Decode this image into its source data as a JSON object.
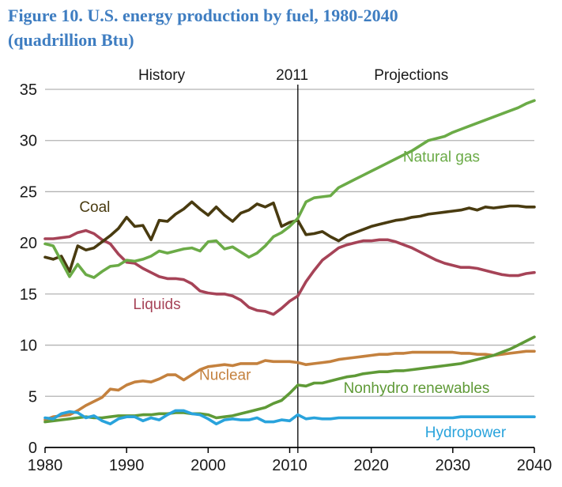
{
  "figure": {
    "title_line1": "Figure 10. U.S. energy production by fuel, 1980-2040",
    "title_line2": "(quadrillion Btu)",
    "title_color": "#3e7dc1"
  },
  "chart_data": {
    "type": "line",
    "title": "U.S. energy production by fuel, 1980-2040",
    "ylabel": "quadrillion Btu",
    "xlabel": "",
    "x_range": [
      1980,
      2040
    ],
    "ylim": [
      0,
      35
    ],
    "y_ticks": [
      0,
      5,
      10,
      15,
      20,
      25,
      30,
      35
    ],
    "x_ticks": [
      1980,
      1990,
      2000,
      2010,
      2020,
      2030,
      2040
    ],
    "grid": "horizontal",
    "grid_color": "#b3b3b3",
    "axis_color": "#000000",
    "text_color": "#1a1a1a",
    "legend_position": "inline-labels",
    "divider": {
      "year": 2011,
      "color": "#000000"
    },
    "zone_labels": [
      {
        "text": "History",
        "x": 1994.3
      },
      {
        "text": "2011",
        "x": 2010.3
      },
      {
        "text": "Projections",
        "x": 2024.9
      }
    ],
    "x_step": 1,
    "series": [
      {
        "name": "Liquids",
        "color": "#a64357",
        "label_pos": [
          1990.8,
          13.9
        ],
        "values": [
          20.4,
          20.4,
          20.5,
          20.6,
          21.0,
          21.2,
          20.9,
          20.3,
          19.9,
          18.9,
          18.1,
          18.0,
          17.5,
          17.1,
          16.7,
          16.5,
          16.5,
          16.4,
          16.0,
          15.3,
          15.1,
          15.0,
          15.0,
          14.8,
          14.4,
          13.7,
          13.4,
          13.3,
          13.0,
          13.6,
          14.3,
          14.8,
          16.2,
          17.3,
          18.3,
          18.9,
          19.5,
          19.8,
          20.0,
          20.2,
          20.2,
          20.3,
          20.3,
          20.1,
          19.8,
          19.5,
          19.1,
          18.7,
          18.3,
          18.0,
          17.8,
          17.6,
          17.6,
          17.5,
          17.3,
          17.1,
          16.9,
          16.8,
          16.8,
          17.0,
          17.1
        ]
      },
      {
        "name": "Coal",
        "color": "#493b10",
        "label_pos": [
          1984.2,
          23.4
        ],
        "values": [
          18.6,
          18.4,
          18.7,
          17.2,
          19.7,
          19.3,
          19.5,
          20.1,
          20.7,
          21.4,
          22.5,
          21.6,
          21.7,
          20.3,
          22.2,
          22.1,
          22.8,
          23.3,
          24.0,
          23.3,
          22.7,
          23.5,
          22.7,
          22.1,
          22.9,
          23.2,
          23.8,
          23.5,
          23.9,
          21.6,
          22.0,
          22.2,
          20.8,
          20.9,
          21.1,
          20.6,
          20.2,
          20.7,
          21.0,
          21.3,
          21.6,
          21.8,
          22.0,
          22.2,
          22.3,
          22.5,
          22.6,
          22.8,
          22.9,
          23.0,
          23.1,
          23.2,
          23.4,
          23.2,
          23.5,
          23.4,
          23.5,
          23.6,
          23.6,
          23.5,
          23.5
        ]
      },
      {
        "name": "Natural gas",
        "color": "#6bab47",
        "label_pos": [
          2023.9,
          28.3
        ],
        "values": [
          19.9,
          19.7,
          18.2,
          16.7,
          17.9,
          16.9,
          16.6,
          17.2,
          17.7,
          17.8,
          18.3,
          18.2,
          18.4,
          18.7,
          19.2,
          19.0,
          19.2,
          19.4,
          19.5,
          19.2,
          20.1,
          20.2,
          19.4,
          19.6,
          19.1,
          18.6,
          19.0,
          19.7,
          20.6,
          21.0,
          21.6,
          22.4,
          24.0,
          24.4,
          24.5,
          24.6,
          25.4,
          25.8,
          26.2,
          26.6,
          27.0,
          27.4,
          27.8,
          28.2,
          28.6,
          29.0,
          29.5,
          30.0,
          30.2,
          30.4,
          30.8,
          31.1,
          31.4,
          31.7,
          32.0,
          32.3,
          32.6,
          32.9,
          33.2,
          33.6,
          33.9
        ]
      },
      {
        "name": "Nuclear",
        "color": "#c4813e",
        "label_pos": [
          1998.9,
          7.0
        ],
        "values": [
          2.7,
          3.0,
          3.1,
          3.2,
          3.6,
          4.1,
          4.5,
          4.9,
          5.7,
          5.6,
          6.1,
          6.4,
          6.5,
          6.4,
          6.7,
          7.1,
          7.1,
          6.6,
          7.1,
          7.6,
          7.9,
          8.0,
          8.1,
          8.0,
          8.2,
          8.2,
          8.2,
          8.5,
          8.4,
          8.4,
          8.4,
          8.3,
          8.1,
          8.2,
          8.3,
          8.4,
          8.6,
          8.7,
          8.8,
          8.9,
          9.0,
          9.1,
          9.1,
          9.2,
          9.2,
          9.3,
          9.3,
          9.3,
          9.3,
          9.3,
          9.3,
          9.2,
          9.2,
          9.1,
          9.1,
          9.0,
          9.1,
          9.2,
          9.3,
          9.4,
          9.4
        ]
      },
      {
        "name": "Nonhydro renewables",
        "color": "#5f9a37",
        "label_pos": [
          2016.6,
          5.7
        ],
        "values": [
          2.5,
          2.6,
          2.7,
          2.8,
          2.9,
          3.0,
          2.9,
          2.9,
          3.0,
          3.1,
          3.1,
          3.1,
          3.2,
          3.2,
          3.3,
          3.3,
          3.4,
          3.4,
          3.3,
          3.3,
          3.2,
          2.9,
          3.0,
          3.1,
          3.3,
          3.5,
          3.7,
          3.9,
          4.3,
          4.6,
          5.3,
          6.1,
          6.0,
          6.3,
          6.3,
          6.5,
          6.7,
          6.9,
          7.0,
          7.2,
          7.3,
          7.4,
          7.4,
          7.5,
          7.5,
          7.6,
          7.7,
          7.8,
          7.9,
          8.0,
          8.1,
          8.2,
          8.4,
          8.6,
          8.8,
          9.0,
          9.3,
          9.6,
          10.0,
          10.4,
          10.8
        ]
      },
      {
        "name": "Hydropower",
        "color": "#29a3dc",
        "label_pos": [
          2026.6,
          1.4
        ],
        "values": [
          2.9,
          2.8,
          3.3,
          3.5,
          3.4,
          2.9,
          3.1,
          2.6,
          2.3,
          2.8,
          3.0,
          3.0,
          2.6,
          2.9,
          2.7,
          3.2,
          3.6,
          3.6,
          3.3,
          3.2,
          2.8,
          2.3,
          2.7,
          2.8,
          2.7,
          2.7,
          2.9,
          2.5,
          2.5,
          2.7,
          2.6,
          3.2,
          2.8,
          2.9,
          2.8,
          2.8,
          2.9,
          2.9,
          2.9,
          2.9,
          2.9,
          2.9,
          2.9,
          2.9,
          2.9,
          2.9,
          2.9,
          2.9,
          2.9,
          2.9,
          2.9,
          3.0,
          3.0,
          3.0,
          3.0,
          3.0,
          3.0,
          3.0,
          3.0,
          3.0,
          3.0
        ]
      }
    ]
  }
}
